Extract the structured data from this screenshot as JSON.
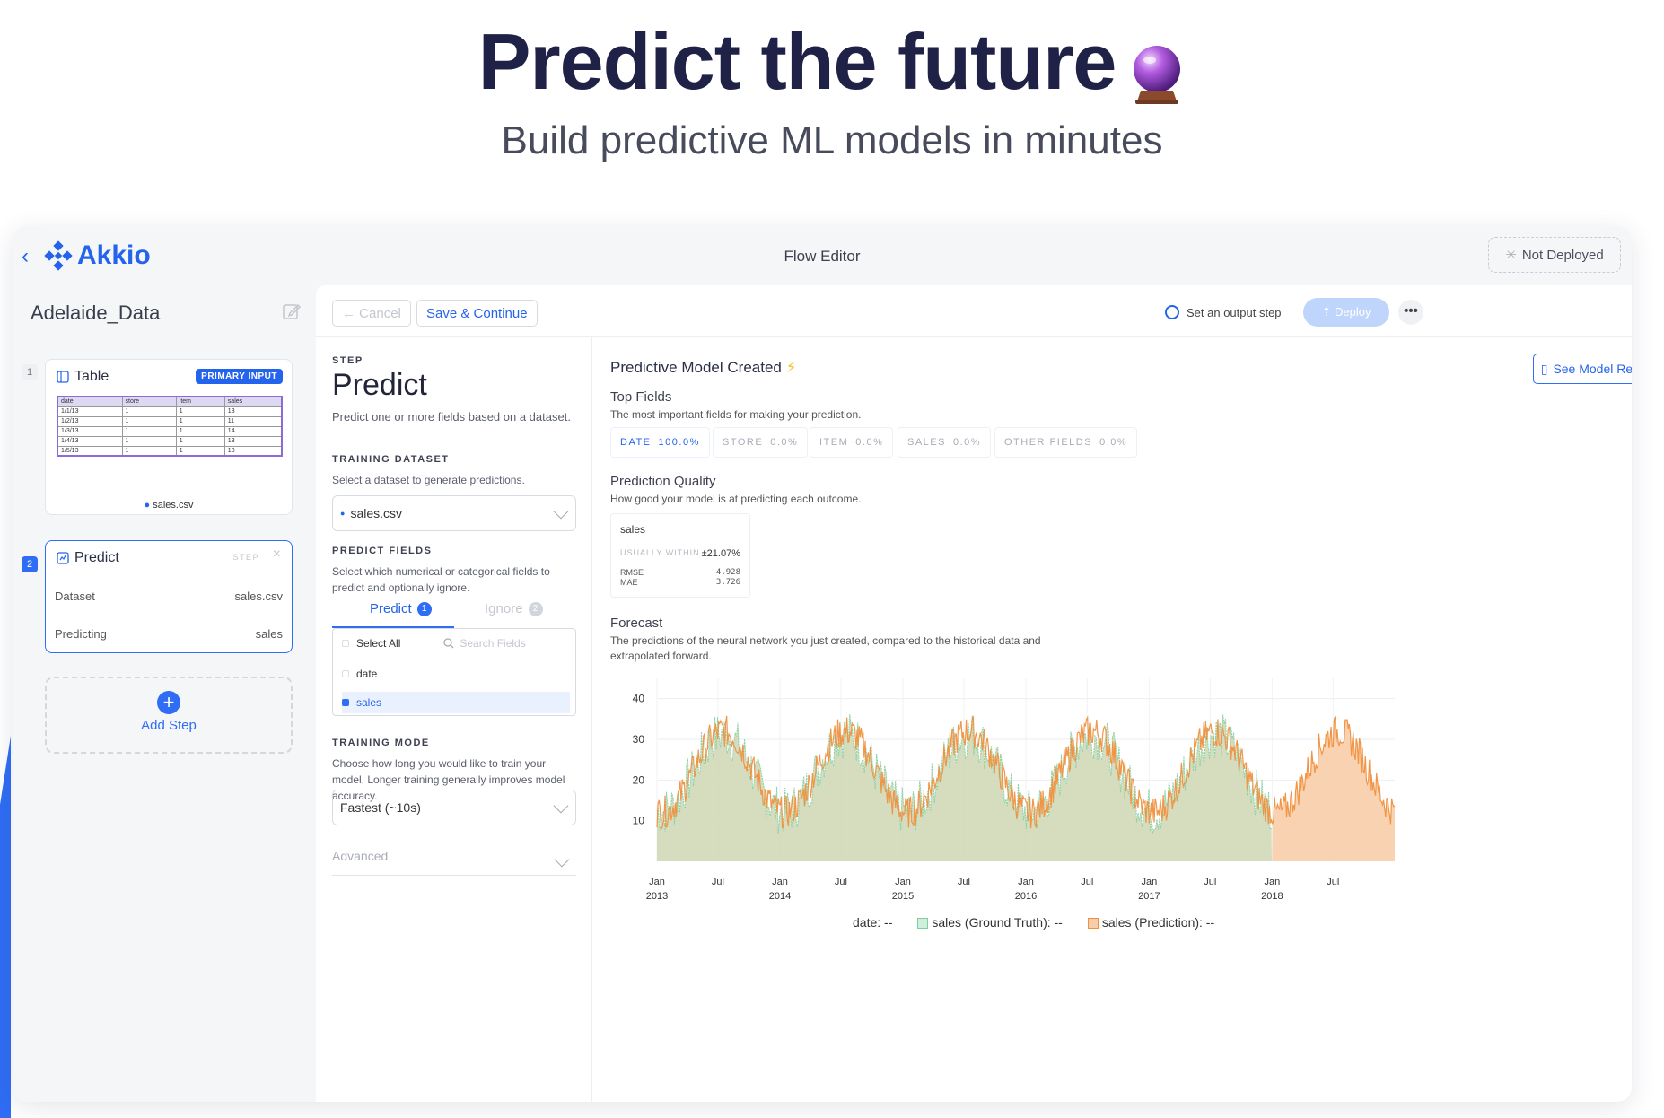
{
  "hero": {
    "title": "Predict the future",
    "subtitle": "Build predictive ML models in minutes",
    "emoji_icon": "crystal-ball-icon"
  },
  "app": {
    "brand": "Akkio",
    "flow_title": "Flow Editor",
    "deploy_status": "Not Deployed",
    "dataset_name": "Adelaide_Data"
  },
  "sidebar": {
    "steps": [
      {
        "num": "1",
        "title": "Table",
        "badge": "PRIMARY INPUT",
        "file": "sales.csv",
        "table": {
          "headers": [
            "date",
            "store",
            "item",
            "sales"
          ],
          "rows": [
            [
              "1/1/13",
              "1",
              "1",
              "13"
            ],
            [
              "1/2/13",
              "1",
              "1",
              "11"
            ],
            [
              "1/3/13",
              "1",
              "1",
              "14"
            ],
            [
              "1/4/13",
              "1",
              "1",
              "13"
            ],
            [
              "1/5/13",
              "1",
              "1",
              "10"
            ]
          ]
        }
      },
      {
        "num": "2",
        "title": "Predict",
        "badge": "STEP",
        "rows": [
          {
            "label": "Dataset",
            "value": "sales.csv"
          },
          {
            "label": "Predicting",
            "value": "sales"
          }
        ]
      }
    ],
    "add_step": "Add Step"
  },
  "toolbar": {
    "cancel": "Cancel",
    "save": "Save & Continue",
    "output_step": "Set an output step",
    "deploy": "Deploy"
  },
  "step_panel": {
    "step_label": "STEP",
    "title": "Predict",
    "description": "Predict one or more fields based on a dataset.",
    "training_dataset": {
      "label": "TRAINING DATASET",
      "description": "Select a dataset to generate predictions.",
      "value": "sales.csv"
    },
    "predict_fields": {
      "label": "PREDICT FIELDS",
      "description": "Select which numerical or categorical fields to predict and optionally ignore.",
      "tab_predict": "Predict",
      "tab_predict_count": "1",
      "tab_ignore": "Ignore",
      "tab_ignore_count": "2",
      "select_all": "Select All",
      "search_placeholder": "Search Fields",
      "fields": [
        "date",
        "sales"
      ]
    },
    "training_mode": {
      "label": "TRAINING MODE",
      "description": "Choose how long you would like to train your model. Longer training generally improves model accuracy.",
      "value": "Fastest (~10s)"
    },
    "advanced": "Advanced"
  },
  "model": {
    "title": "Predictive Model Created",
    "report_button": "See Model Report",
    "top_fields": {
      "title": "Top Fields",
      "description": "The most important fields for making your prediction.",
      "chips": [
        {
          "name": "DATE",
          "value": "100.0%"
        },
        {
          "name": "STORE",
          "value": "0.0%"
        },
        {
          "name": "ITEM",
          "value": "0.0%"
        },
        {
          "name": "SALES",
          "value": "0.0%"
        },
        {
          "name": "OTHER FIELDS",
          "value": "0.0%"
        }
      ]
    },
    "quality": {
      "title": "Prediction Quality",
      "description": "How good your model is at predicting each outcome.",
      "field": "sales",
      "usually_within_label": "USUALLY WITHIN",
      "usually_within_value": "±21.07%",
      "rmse_label": "RMSE",
      "rmse_value": "4.928",
      "mae_label": "MAE",
      "mae_value": "3.726"
    },
    "forecast": {
      "title": "Forecast",
      "description": "The predictions of the neural network you just created, compared to the historical data and extrapolated forward."
    },
    "legend": {
      "date": "date: --",
      "truth": "sales (Ground Truth): --",
      "prediction": "sales (Prediction): --"
    }
  },
  "colors": {
    "accent": "#2463eb",
    "truth": "#7fcf9e",
    "prediction": "#f0913f",
    "truth_fill": "#cfd7b4",
    "prediction_fill": "#f8cda9"
  },
  "chart_data": {
    "type": "area",
    "x_ticks": [
      "Jan 2013",
      "Jul",
      "Jan 2014",
      "Jul",
      "Jan 2015",
      "Jul",
      "Jan 2016",
      "Jul",
      "Jan 2017",
      "Jul",
      "Jan 2018",
      "Jul"
    ],
    "y_ticks": [
      10,
      20,
      30,
      40
    ],
    "ylim": [
      0,
      45
    ],
    "xlim": [
      "2013-01-01",
      "2018-12-31"
    ],
    "forecast_start": "2018-01-01",
    "series": [
      {
        "name": "sales (Ground Truth)",
        "x_range": [
          "2013-01-01",
          "2017-12-31"
        ],
        "seasonal_min": 11,
        "seasonal_max": 30
      },
      {
        "name": "sales (Prediction)",
        "x_range": [
          "2013-01-01",
          "2018-12-31"
        ],
        "seasonal_min": 12,
        "seasonal_max": 32
      }
    ]
  }
}
